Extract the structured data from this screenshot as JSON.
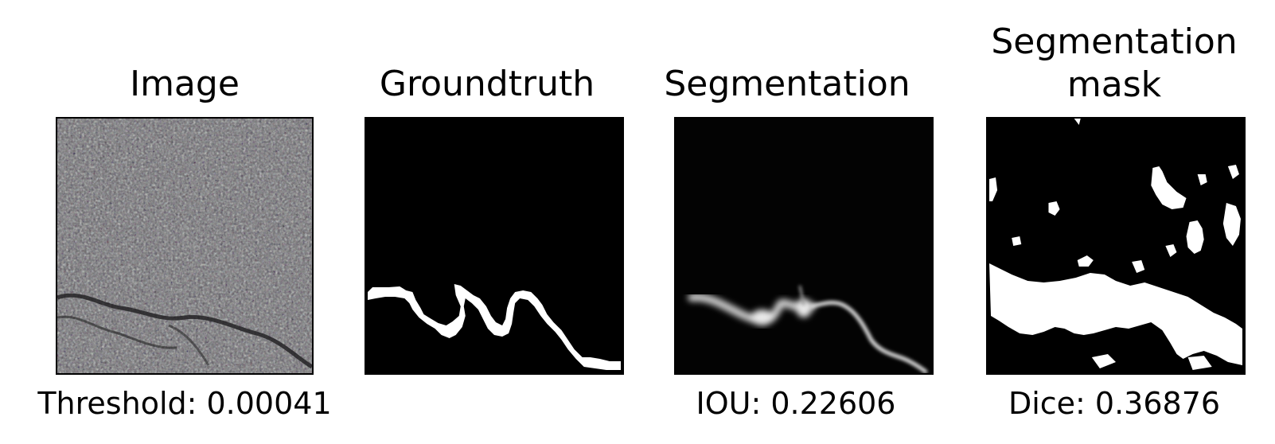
{
  "panels": [
    {
      "title": "Image",
      "caption": "Threshold: 0.00041"
    },
    {
      "title": "Groundtruth",
      "caption": ""
    },
    {
      "title": "Segmentation",
      "caption": "IOU: 0.22606"
    },
    {
      "title": "Segmentation\nmask",
      "caption": "Dice: 0.36876"
    }
  ],
  "colors": {
    "background": "#ffffff",
    "mask_background": "#000000",
    "mask_foreground": "#ffffff",
    "asphalt": "#6e6e6e"
  }
}
